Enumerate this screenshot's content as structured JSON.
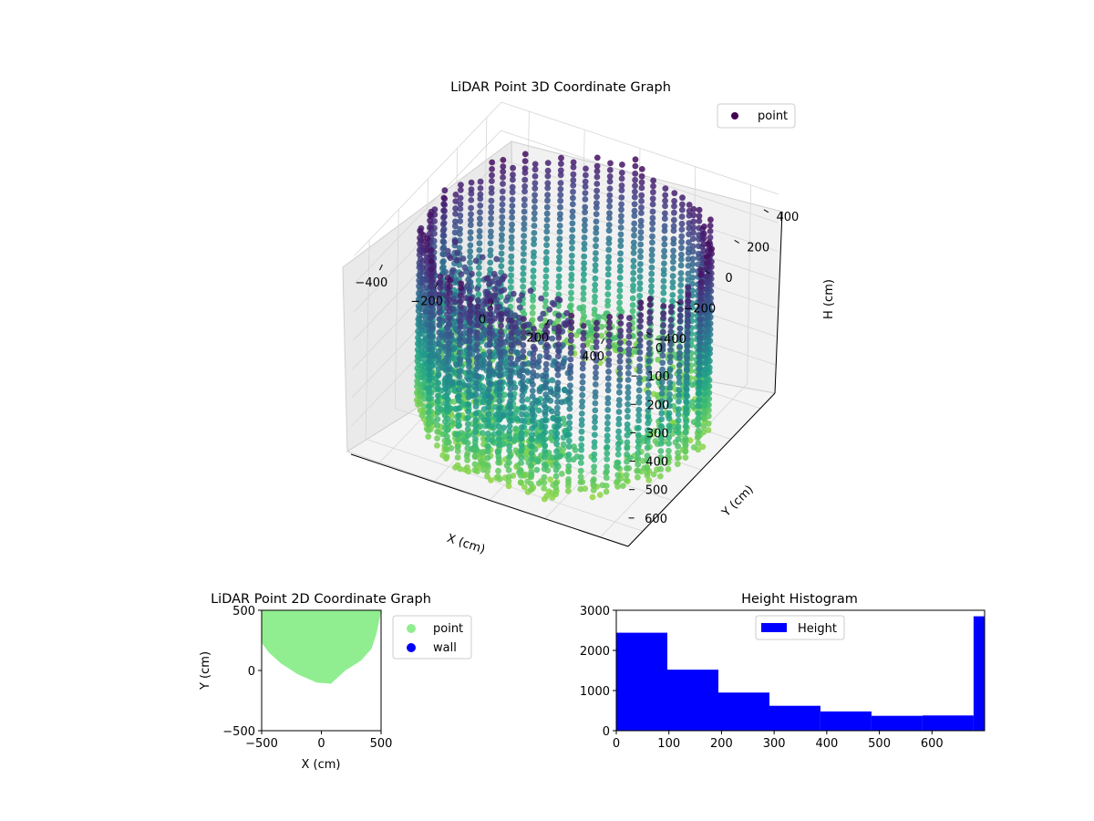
{
  "chart_data": [
    {
      "type": "scatter",
      "projection": "3d",
      "title": "LiDAR Point 3D Coordinate Graph",
      "xlabel": "X (cm)",
      "ylabel": "Y (cm)",
      "zlabel": "H (cm)",
      "x_ticks": [
        "−400",
        "−200",
        "0",
        "200",
        "400"
      ],
      "y_ticks": [
        "−400",
        "−200",
        "0",
        "200",
        "400"
      ],
      "z_ticks": [
        "0",
        "100",
        "200",
        "300",
        "400",
        "500",
        "600"
      ],
      "xlim": [
        -500,
        500
      ],
      "ylim": [
        -500,
        500
      ],
      "zlim": [
        0,
        700
      ],
      "z_inverted": true,
      "colormap": "viridis",
      "legend": {
        "placement": "upper right",
        "entries": [
          {
            "label": "point",
            "color": "#440154"
          }
        ]
      },
      "shape": "roughly cylindrical ring of points, radius about 450 cm, heights 0–690 cm, with a dense wall section near the top front"
    },
    {
      "type": "scatter",
      "title": "LiDAR Point 2D Coordinate Graph",
      "xlabel": "X (cm)",
      "ylabel": "Y (cm)",
      "x_ticks": [
        "−500",
        "0",
        "500"
      ],
      "y_ticks": [
        "−500",
        "0",
        "500"
      ],
      "xlim": [
        -500,
        500
      ],
      "ylim": [
        -500,
        500
      ],
      "series": [
        {
          "name": "point",
          "color": "#90ee90",
          "region_outline": [
            [
              -500,
              500
            ],
            [
              500,
              500
            ],
            [
              490,
              440
            ],
            [
              460,
              300
            ],
            [
              420,
              180
            ],
            [
              330,
              80
            ],
            [
              200,
              0
            ],
            [
              80,
              -110
            ],
            [
              -40,
              -100
            ],
            [
              -200,
              -30
            ],
            [
              -340,
              60
            ],
            [
              -440,
              150
            ],
            [
              -500,
              230
            ]
          ]
        },
        {
          "name": "wall",
          "color": "#0000ff",
          "points": []
        }
      ],
      "legend": {
        "placement": "outside right"
      }
    },
    {
      "type": "bar",
      "subtype": "histogram",
      "title": "Height Histogram",
      "series_name": "Height",
      "color": "#0000ff",
      "bin_edges": [
        0,
        97,
        194,
        291,
        388,
        485,
        582,
        679,
        700
      ],
      "values": [
        2440,
        1520,
        950,
        620,
        480,
        370,
        380,
        2850
      ],
      "x_ticks": [
        "0",
        "100",
        "200",
        "300",
        "400",
        "500",
        "600"
      ],
      "y_ticks": [
        "0",
        "1000",
        "2000",
        "3000"
      ],
      "xlim": [
        0,
        700
      ],
      "ylim": [
        0,
        3000
      ],
      "legend": {
        "placement": "upper center",
        "entries": [
          {
            "label": "Height",
            "color": "#0000ff"
          }
        ]
      }
    }
  ]
}
